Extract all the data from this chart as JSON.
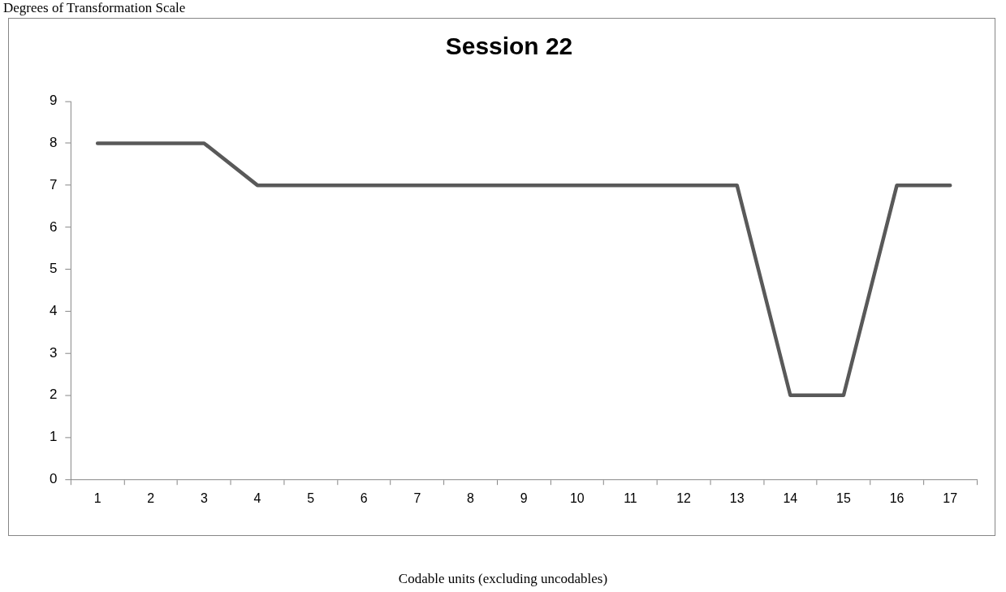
{
  "chart_data": {
    "type": "line",
    "title": "Session 22",
    "annotations": [
      "Degrees of Transformation Scale",
      "Codable units (excluding uncodables)"
    ],
    "categories": [
      "1",
      "2",
      "3",
      "4",
      "5",
      "6",
      "7",
      "8",
      "9",
      "10",
      "11",
      "12",
      "13",
      "14",
      "15",
      "16",
      "17"
    ],
    "series": [
      {
        "color": "#595959",
        "values": [
          8,
          8,
          8,
          7,
          7,
          7,
          7,
          7,
          7,
          7,
          7,
          7,
          7,
          2,
          2,
          7,
          7
        ]
      }
    ],
    "ylim": [
      0,
      9
    ],
    "yticks": [
      0,
      1,
      2,
      3,
      4,
      5,
      6,
      7,
      8,
      9
    ],
    "grid": false,
    "legend": false,
    "marker": "none",
    "line_style": "solid"
  }
}
